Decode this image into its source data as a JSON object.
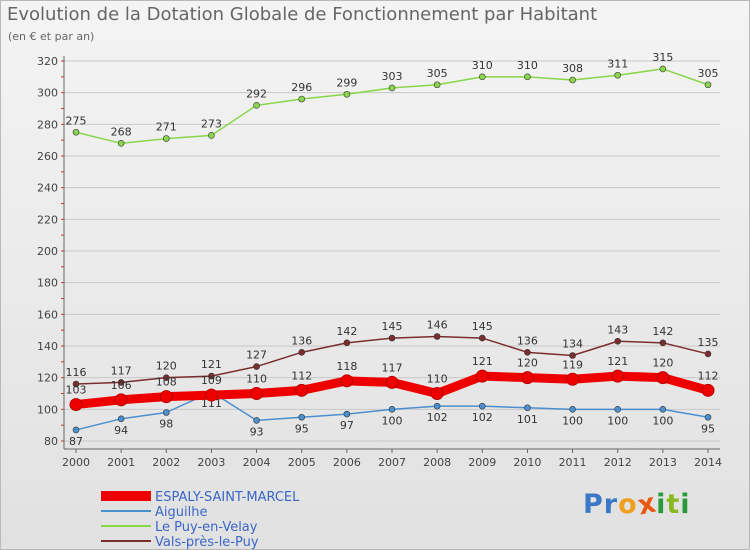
{
  "header": {
    "title": "Evolution de la Dotation Globale de Fonctionnement par Habitant",
    "subtitle": "(en € et par an)"
  },
  "logo": {
    "text": "Proxiti",
    "letters": [
      "P",
      "r",
      "o",
      "x",
      "i",
      "t",
      "i"
    ],
    "colors": [
      "#3c78c8",
      "#3c78c8",
      "#f0a020",
      "#e85a12",
      "#2a9a3a",
      "#8ab820",
      "#2a9a3a"
    ]
  },
  "colors": {
    "ESPALY-SAINT-MARCEL": "#ee0000",
    "Aiguilhe": "#4b8fcf",
    "Le Puy-en-Velay": "#88d64a",
    "Vals-près-le-Puy": "#7a2e2e"
  },
  "chart_data": {
    "type": "line",
    "x": [
      2000,
      2001,
      2002,
      2003,
      2004,
      2005,
      2006,
      2007,
      2008,
      2009,
      2010,
      2011,
      2012,
      2013,
      2014
    ],
    "ylim": [
      80,
      320
    ],
    "yticks": [
      80,
      100,
      120,
      140,
      160,
      180,
      200,
      220,
      240,
      260,
      280,
      300,
      320
    ],
    "grid": "horizontal",
    "legend_position": "bottom-left",
    "series": [
      {
        "name": "ESPALY-SAINT-MARCEL",
        "values": [
          103,
          106,
          108,
          109,
          110,
          112,
          118,
          117,
          110,
          121,
          120,
          119,
          121,
          120,
          112
        ]
      },
      {
        "name": "Aiguilhe",
        "values": [
          87,
          94,
          98,
          111,
          93,
          95,
          97,
          100,
          102,
          102,
          101,
          100,
          100,
          100,
          95
        ]
      },
      {
        "name": "Le Puy-en-Velay",
        "values": [
          275,
          268,
          271,
          273,
          292,
          296,
          299,
          303,
          305,
          310,
          310,
          308,
          311,
          315,
          305
        ]
      },
      {
        "name": "Vals-près-le-Puy",
        "values": [
          116,
          117,
          120,
          121,
          127,
          136,
          142,
          145,
          146,
          145,
          136,
          134,
          143,
          142,
          135
        ]
      }
    ]
  }
}
